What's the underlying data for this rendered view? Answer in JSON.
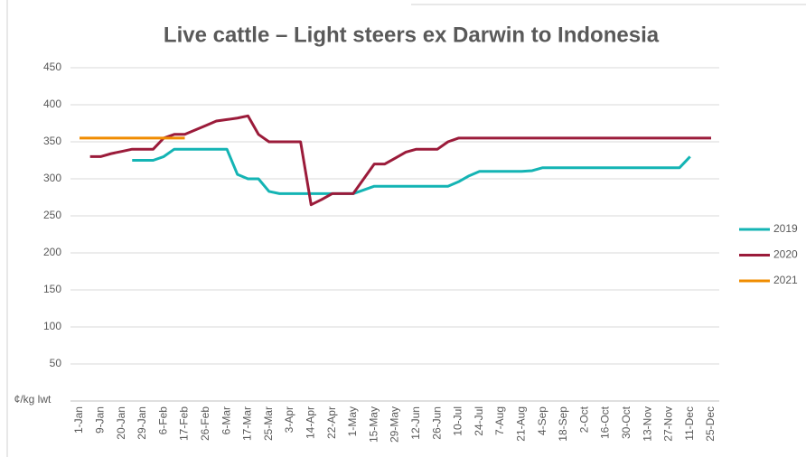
{
  "chart_data": {
    "type": "line",
    "title": "Live cattle – Light steers ex Darwin to Indonesia",
    "y_label": "¢/kg lwt",
    "categories": [
      "1-Jan",
      null,
      "9-Jan",
      null,
      "20-Jan",
      null,
      "29-Jan",
      null,
      "6-Feb",
      null,
      "17-Feb",
      null,
      "26-Feb",
      null,
      "6-Mar",
      null,
      "17-Mar",
      null,
      "25-Mar",
      null,
      "3-Apr",
      null,
      "14-Apr",
      null,
      "22-Apr",
      null,
      "1-May",
      null,
      "15-May",
      null,
      "29-May",
      null,
      "12-Jun",
      null,
      "26-Jun",
      null,
      "10-Jul",
      null,
      "24-Jul",
      null,
      "7-Aug",
      null,
      "21-Aug",
      null,
      "4-Sep",
      null,
      "18-Sep",
      null,
      "2-Oct",
      null,
      "16-Oct",
      null,
      "30-Oct",
      null,
      "13-Nov",
      null,
      "27-Nov",
      null,
      "11-Dec",
      null,
      "25-Dec"
    ],
    "series": [
      {
        "name": "2019",
        "color": "#14b4b4",
        "values": [
          null,
          null,
          null,
          null,
          null,
          325,
          325,
          325,
          330,
          340,
          340,
          340,
          340,
          340,
          340,
          306,
          300,
          300,
          283,
          280,
          280,
          280,
          280,
          280,
          280,
          280,
          280,
          285,
          290,
          290,
          290,
          290,
          290,
          290,
          290,
          290,
          296,
          304,
          310,
          310,
          310,
          310,
          310,
          311,
          315,
          315,
          315,
          315,
          315,
          315,
          315,
          315,
          315,
          315,
          315,
          315,
          315,
          315,
          330,
          null,
          null
        ]
      },
      {
        "name": "2020",
        "color": "#9b1b3a",
        "values": [
          null,
          330,
          330,
          334,
          337,
          340,
          340,
          340,
          355,
          360,
          360,
          366,
          372,
          378,
          380,
          382,
          385,
          360,
          350,
          350,
          350,
          350,
          265,
          272,
          280,
          280,
          280,
          300,
          320,
          320,
          328,
          336,
          340,
          340,
          340,
          350,
          355,
          355,
          355,
          355,
          355,
          355,
          355,
          355,
          355,
          355,
          355,
          355,
          355,
          355,
          355,
          355,
          355,
          355,
          355,
          355,
          355,
          355,
          355,
          355,
          355
        ]
      },
      {
        "name": "2021",
        "color": "#f08c00",
        "values": [
          355,
          355,
          355,
          355,
          355,
          355,
          355,
          355,
          355,
          355,
          355,
          null,
          null,
          null,
          null,
          null,
          null,
          null,
          null,
          null,
          null,
          null,
          null,
          null,
          null,
          null,
          null,
          null,
          null,
          null,
          null,
          null,
          null,
          null,
          null,
          null,
          null,
          null,
          null,
          null,
          null,
          null,
          null,
          null,
          null,
          null,
          null,
          null,
          null,
          null,
          null,
          null,
          null,
          null,
          null,
          null,
          null,
          null,
          null,
          null,
          null
        ]
      }
    ],
    "ylim": [
      0,
      450
    ],
    "yticks": [
      50,
      100,
      150,
      200,
      250,
      300,
      350,
      400,
      450
    ],
    "grid": true,
    "legend": "right"
  }
}
